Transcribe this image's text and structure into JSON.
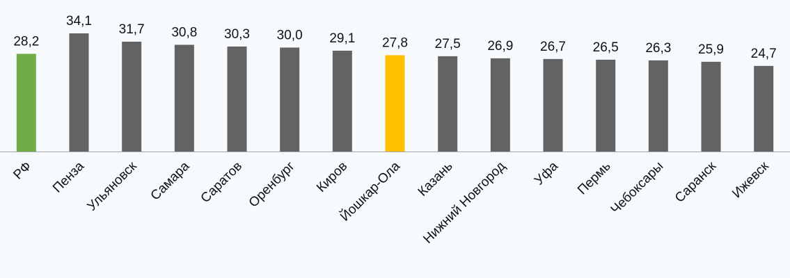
{
  "chart_data": {
    "type": "bar",
    "categories": [
      "РФ",
      "Пенза",
      "Ульяновск",
      "Самара",
      "Саратов",
      "Оренбург",
      "Киров",
      "Йошкар-Ола",
      "Казань",
      "Нижний Новгород",
      "Уфа",
      "Пермь",
      "Чебоксары",
      "Саранск",
      "Ижевск"
    ],
    "values": [
      28.2,
      34.1,
      31.7,
      30.8,
      30.3,
      30.0,
      29.1,
      27.8,
      27.5,
      26.9,
      26.7,
      26.5,
      26.3,
      25.9,
      24.7
    ],
    "value_labels": [
      "28,2",
      "34,1",
      "31,7",
      "30,8",
      "30,3",
      "30,0",
      "29,1",
      "27,8",
      "27,5",
      "26,9",
      "26,7",
      "26,5",
      "26,3",
      "25,9",
      "24,7"
    ],
    "colors": [
      "#70ad47",
      "#636363",
      "#636363",
      "#636363",
      "#636363",
      "#636363",
      "#636363",
      "#ffc000",
      "#636363",
      "#636363",
      "#636363",
      "#636363",
      "#636363",
      "#636363",
      "#636363"
    ]
  }
}
